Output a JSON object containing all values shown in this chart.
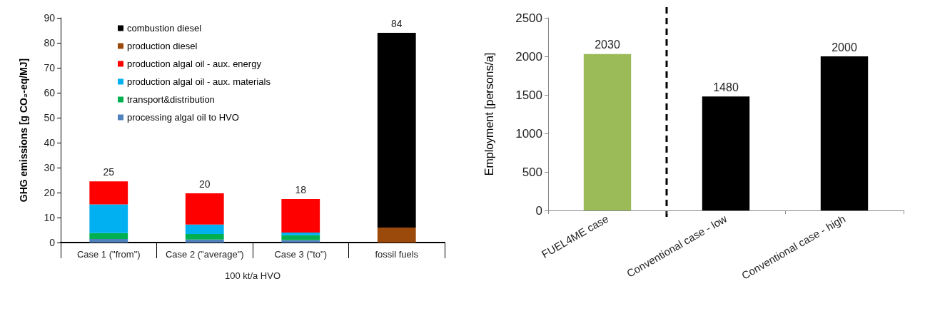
{
  "chart_data": [
    {
      "type": "bar",
      "stacked": true,
      "ylabel": "GHG emissions [g CO₂-eq/MJ]",
      "categories": [
        "Case 1 (\"from\")",
        "Case 2 (\"average\")",
        "Case 3 (\"to\")",
        "fossil fuels"
      ],
      "ylim": [
        0,
        90
      ],
      "yticks": [
        0,
        10,
        20,
        30,
        40,
        50,
        60,
        70,
        80,
        90
      ],
      "grid": false,
      "legend": "top left",
      "series": [
        {
          "name": "processing algal oil to HVO",
          "color": "#4f81bd",
          "values": [
            1.4,
            1.2,
            1.0,
            0
          ]
        },
        {
          "name": "transport&distribution",
          "color": "#00b050",
          "values": [
            2.4,
            2.2,
            1.9,
            0
          ]
        },
        {
          "name": "production algal oil - aux. materials",
          "color": "#00b0f0",
          "values": [
            11.5,
            3.8,
            1.1,
            0
          ]
        },
        {
          "name": "production algal oil - aux. energy",
          "color": "#ff0000",
          "values": [
            9.2,
            12.5,
            13.4,
            0
          ]
        },
        {
          "name": "production diesel",
          "color": "#9c4a0c",
          "values": [
            0,
            0,
            0,
            6
          ]
        },
        {
          "name": "combustion diesel",
          "color": "#000000",
          "values": [
            0,
            0,
            0,
            78
          ]
        }
      ],
      "totals": [
        "25",
        "20",
        "18",
        "84"
      ],
      "annotations": [
        "100 kt/a HVO"
      ]
    },
    {
      "type": "bar",
      "ylabel": "Employment [persons/a]",
      "categories": [
        "FUEL4ME case",
        "Conventional case - low",
        "Conventional case - high"
      ],
      "values": [
        2030,
        1480,
        2000
      ],
      "colors": [
        "#9bbb59",
        "#000000",
        "#000000"
      ],
      "ylim": [
        0,
        2500
      ],
      "yticks": [
        0,
        500,
        1000,
        1500,
        2000,
        2500
      ],
      "grid": false,
      "data_labels": true
    }
  ]
}
